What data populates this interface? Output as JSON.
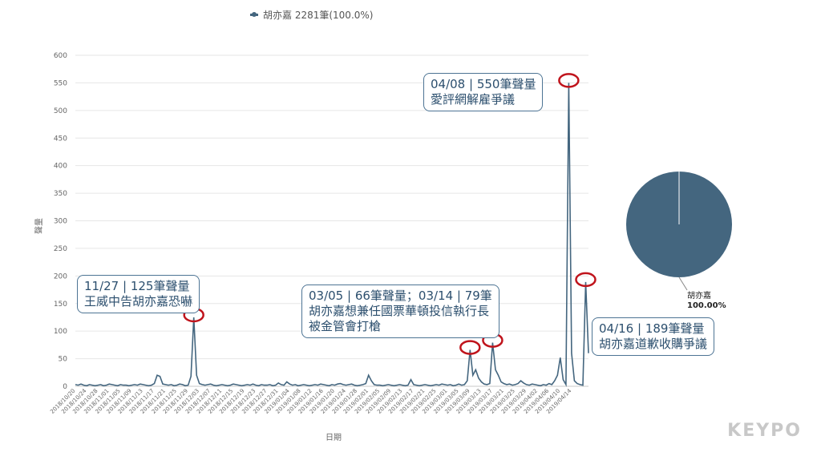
{
  "legend": {
    "label": "胡亦嘉 2281筆(100.0%)",
    "color": "#44667f"
  },
  "callouts": [
    {
      "line1": "11/27 | 125筆聲量",
      "line2": "王威中告胡亦嘉恐嚇",
      "line3": ""
    },
    {
      "line1": "03/05 | 66筆聲量；03/14 | 79筆",
      "line2": "胡亦嘉想兼任國票華頓投信執行長",
      "line3": "被金管會打槍"
    },
    {
      "line1": "04/08 | 550筆聲量",
      "line2": "愛評網解雇爭議",
      "line3": ""
    },
    {
      "line1": "04/16 | 189筆聲量",
      "line2": "胡亦嘉道歉收購爭議",
      "line3": ""
    }
  ],
  "pie": {
    "label": "胡亦嘉",
    "percent": "100.00%",
    "color": "#44667f"
  },
  "logo": "KEYPO",
  "chart_data": {
    "type": "line",
    "title": "",
    "xlabel": "日期",
    "ylabel": "聲量",
    "ylim": [
      0,
      600
    ],
    "yticks": [
      0,
      50,
      100,
      150,
      200,
      250,
      300,
      350,
      400,
      450,
      500,
      550,
      600
    ],
    "grid": true,
    "legend_position": "top",
    "series_color": "#44667f",
    "x_start": "2018/10/20",
    "x_end": "2019/04/18",
    "xtick_labels": [
      "2018/10/20",
      "2018/10/24",
      "2018/10/28",
      "2018/11/01",
      "2018/11/05",
      "2018/11/09",
      "2018/11/13",
      "2018/11/17",
      "2018/11/21",
      "2018/11/25",
      "2018/11/29",
      "2018/12/03",
      "2018/12/07",
      "2018/12/11",
      "2018/12/15",
      "2018/12/19",
      "2018/12/23",
      "2018/12/27",
      "2018/12/31",
      "2019/01/04",
      "2019/01/08",
      "2019/01/12",
      "2019/01/16",
      "2019/01/20",
      "2019/01/24",
      "2019/01/28",
      "2019/02/01",
      "2019/02/05",
      "2019/02/09",
      "2019/02/13",
      "2019/02/17",
      "2019/02/21",
      "2019/02/25",
      "2019/03/01",
      "2019/03/05",
      "2019/03/09",
      "2019/03/13",
      "2019/03/17",
      "2019/03/21",
      "2019/03/25",
      "2019/03/29",
      "2019/04/02",
      "2019/04/06",
      "2019/04/10",
      "2019/04/14"
    ],
    "series": [
      {
        "name": "胡亦嘉",
        "values": [
          3,
          2,
          4,
          2,
          1,
          3,
          2,
          1,
          2,
          3,
          1,
          2,
          4,
          3,
          2,
          1,
          3,
          2,
          2,
          1,
          2,
          3,
          2,
          4,
          3,
          2,
          1,
          2,
          5,
          20,
          18,
          4,
          3,
          2,
          3,
          1,
          2,
          4,
          3,
          1,
          2,
          18,
          125,
          20,
          5,
          3,
          2,
          3,
          4,
          2,
          1,
          2,
          3,
          2,
          1,
          2,
          4,
          3,
          2,
          1,
          2,
          3,
          2,
          4,
          2,
          1,
          3,
          2,
          2,
          3,
          1,
          2,
          6,
          3,
          2,
          8,
          4,
          2,
          3,
          1,
          2,
          3,
          2,
          1,
          2,
          3,
          2,
          4,
          3,
          2,
          1,
          3,
          2,
          4,
          5,
          3,
          2,
          3,
          4,
          2,
          1,
          2,
          3,
          5,
          20,
          10,
          3,
          2,
          2,
          1,
          2,
          3,
          2,
          1,
          2,
          3,
          2,
          1,
          2,
          12,
          3,
          2,
          1,
          2,
          3,
          2,
          1,
          2,
          3,
          2,
          4,
          3,
          2,
          3,
          1,
          2,
          4,
          2,
          3,
          10,
          66,
          20,
          30,
          15,
          8,
          4,
          3,
          5,
          79,
          30,
          20,
          8,
          5,
          3,
          4,
          2,
          3,
          5,
          10,
          6,
          3,
          2,
          4,
          3,
          2,
          1,
          3,
          2,
          5,
          3,
          10,
          20,
          52,
          12,
          3,
          550,
          60,
          10,
          5,
          3,
          2,
          189,
          60
        ]
      }
    ]
  }
}
